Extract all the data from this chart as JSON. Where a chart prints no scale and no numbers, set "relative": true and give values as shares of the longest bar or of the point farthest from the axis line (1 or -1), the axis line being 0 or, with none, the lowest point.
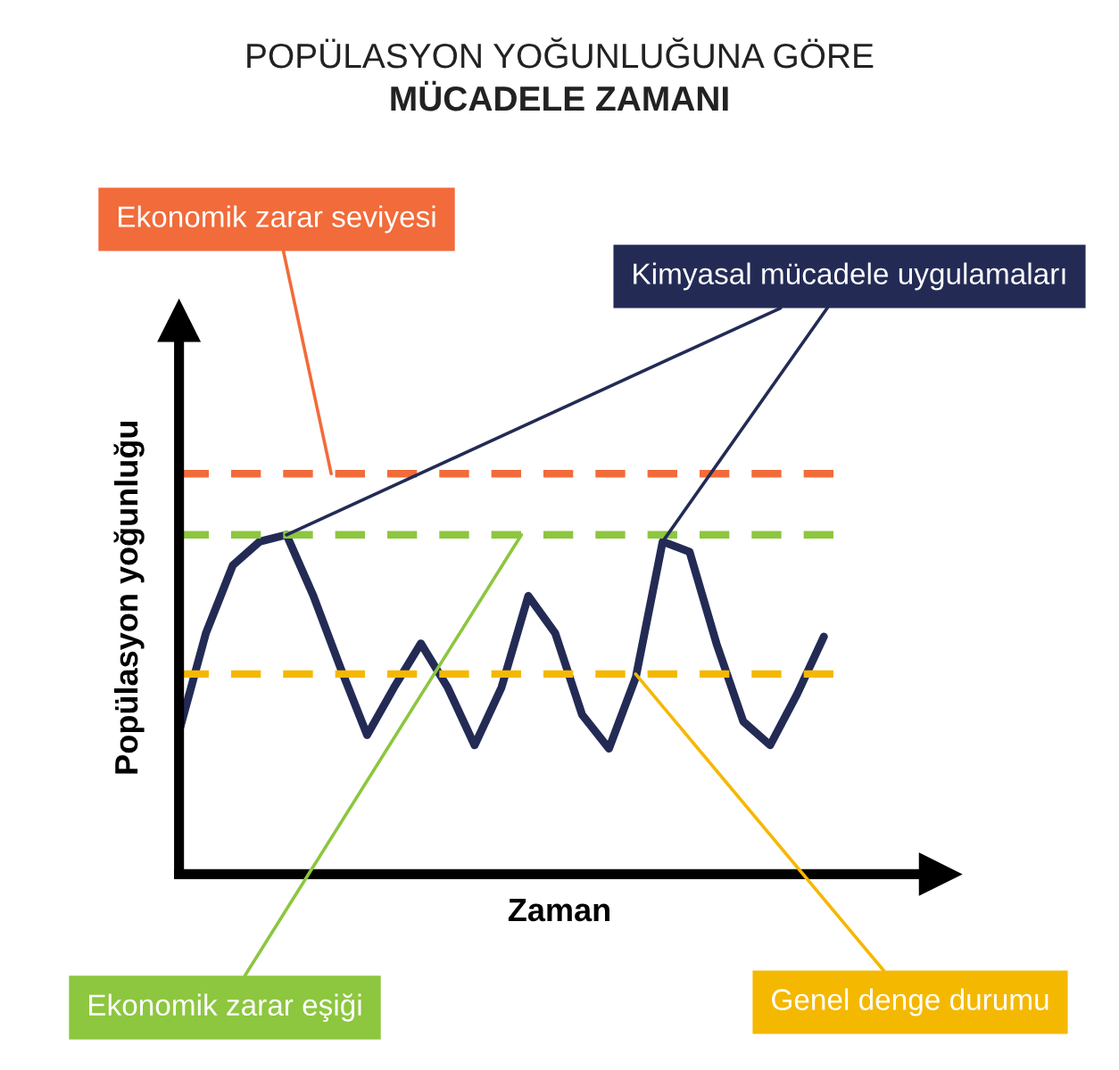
{
  "chart_data": {
    "type": "line",
    "title": "POPÜLASYON YOĞUNLUĞUNA GÖRE",
    "subtitle": "MÜCADELE ZAMANI",
    "xlabel": "Zaman",
    "ylabel": "Popülasyon yoğunluğu",
    "relative": true,
    "categories": [
      null,
      null,
      null,
      null,
      null,
      null,
      null,
      null,
      null,
      null,
      null,
      null,
      null,
      null,
      null,
      null,
      null,
      null,
      null,
      null,
      null,
      null,
      null,
      null,
      null
    ],
    "series": [
      {
        "color": "#232b55",
        "line_style": "solid",
        "values": [
          0.42,
          0.71,
          0.91,
          0.98,
          1.0,
          0.82,
          0.61,
          0.41,
          0.55,
          0.68,
          0.55,
          0.38,
          0.55,
          0.82,
          0.71,
          0.47,
          0.37,
          0.58,
          0.98,
          0.95,
          0.68,
          0.45,
          0.38,
          0.53,
          0.7
        ]
      }
    ],
    "ref_lines": [
      {
        "axis": "y",
        "value": 1.18,
        "label": "Ekonomik zarar seviyesi",
        "color": "#f26b3a",
        "line_style": "dashed"
      },
      {
        "axis": "y",
        "value": 1.0,
        "label": "Ekonomik zarar eşiği",
        "color": "#8dc63f",
        "line_style": "dashed"
      },
      {
        "axis": "y",
        "value": 0.59,
        "label": "Genel denge durumu",
        "color": "#f5b800",
        "line_style": "dashed"
      }
    ],
    "annotations": [
      "Kimyasal mücadele uygulamaları"
    ],
    "legend": false,
    "grid": false,
    "marker": "none"
  }
}
